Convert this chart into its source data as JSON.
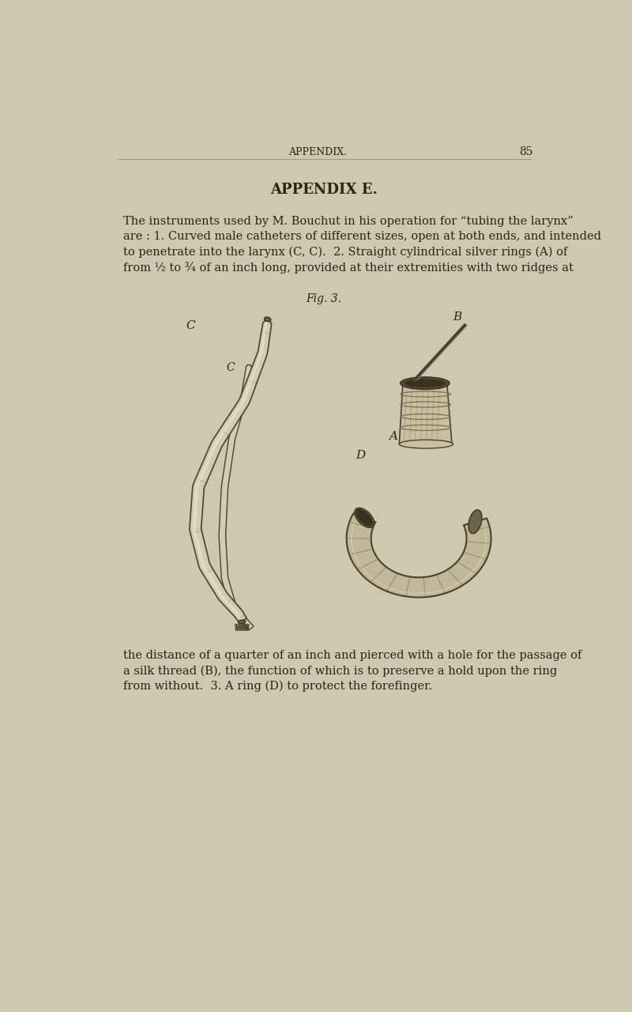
{
  "background_color": "#cec8b0",
  "header_text": "APPENDIX.",
  "page_number": "85",
  "title": "APPENDIX E.",
  "body_text_1_lines": [
    "The instruments used by M. Bouchut in his operation for “tubing the larynx”",
    "are : 1. Curved male catheters of different sizes, open at both ends, and intended",
    "to penetrate into the larynx (C, C).  2. Straight cylindrical silver rings (A) of",
    "from ½ to ¾ of an inch long, provided at their extremities with two ridges at"
  ],
  "fig_caption": "Fig. 3.",
  "body_text_2_lines": [
    "the distance of a quarter of an inch and pierced with a hole for the passage of",
    "a silk thread (B), the function of which is to preserve a hold upon the ring",
    "from without.  3. A ring (D) to protect the forefinger."
  ],
  "text_color": "#2a2318",
  "header_fontsize": 9,
  "title_fontsize": 13,
  "body_fontsize": 10.5,
  "caption_fontsize": 10,
  "label_fontsize": 11
}
